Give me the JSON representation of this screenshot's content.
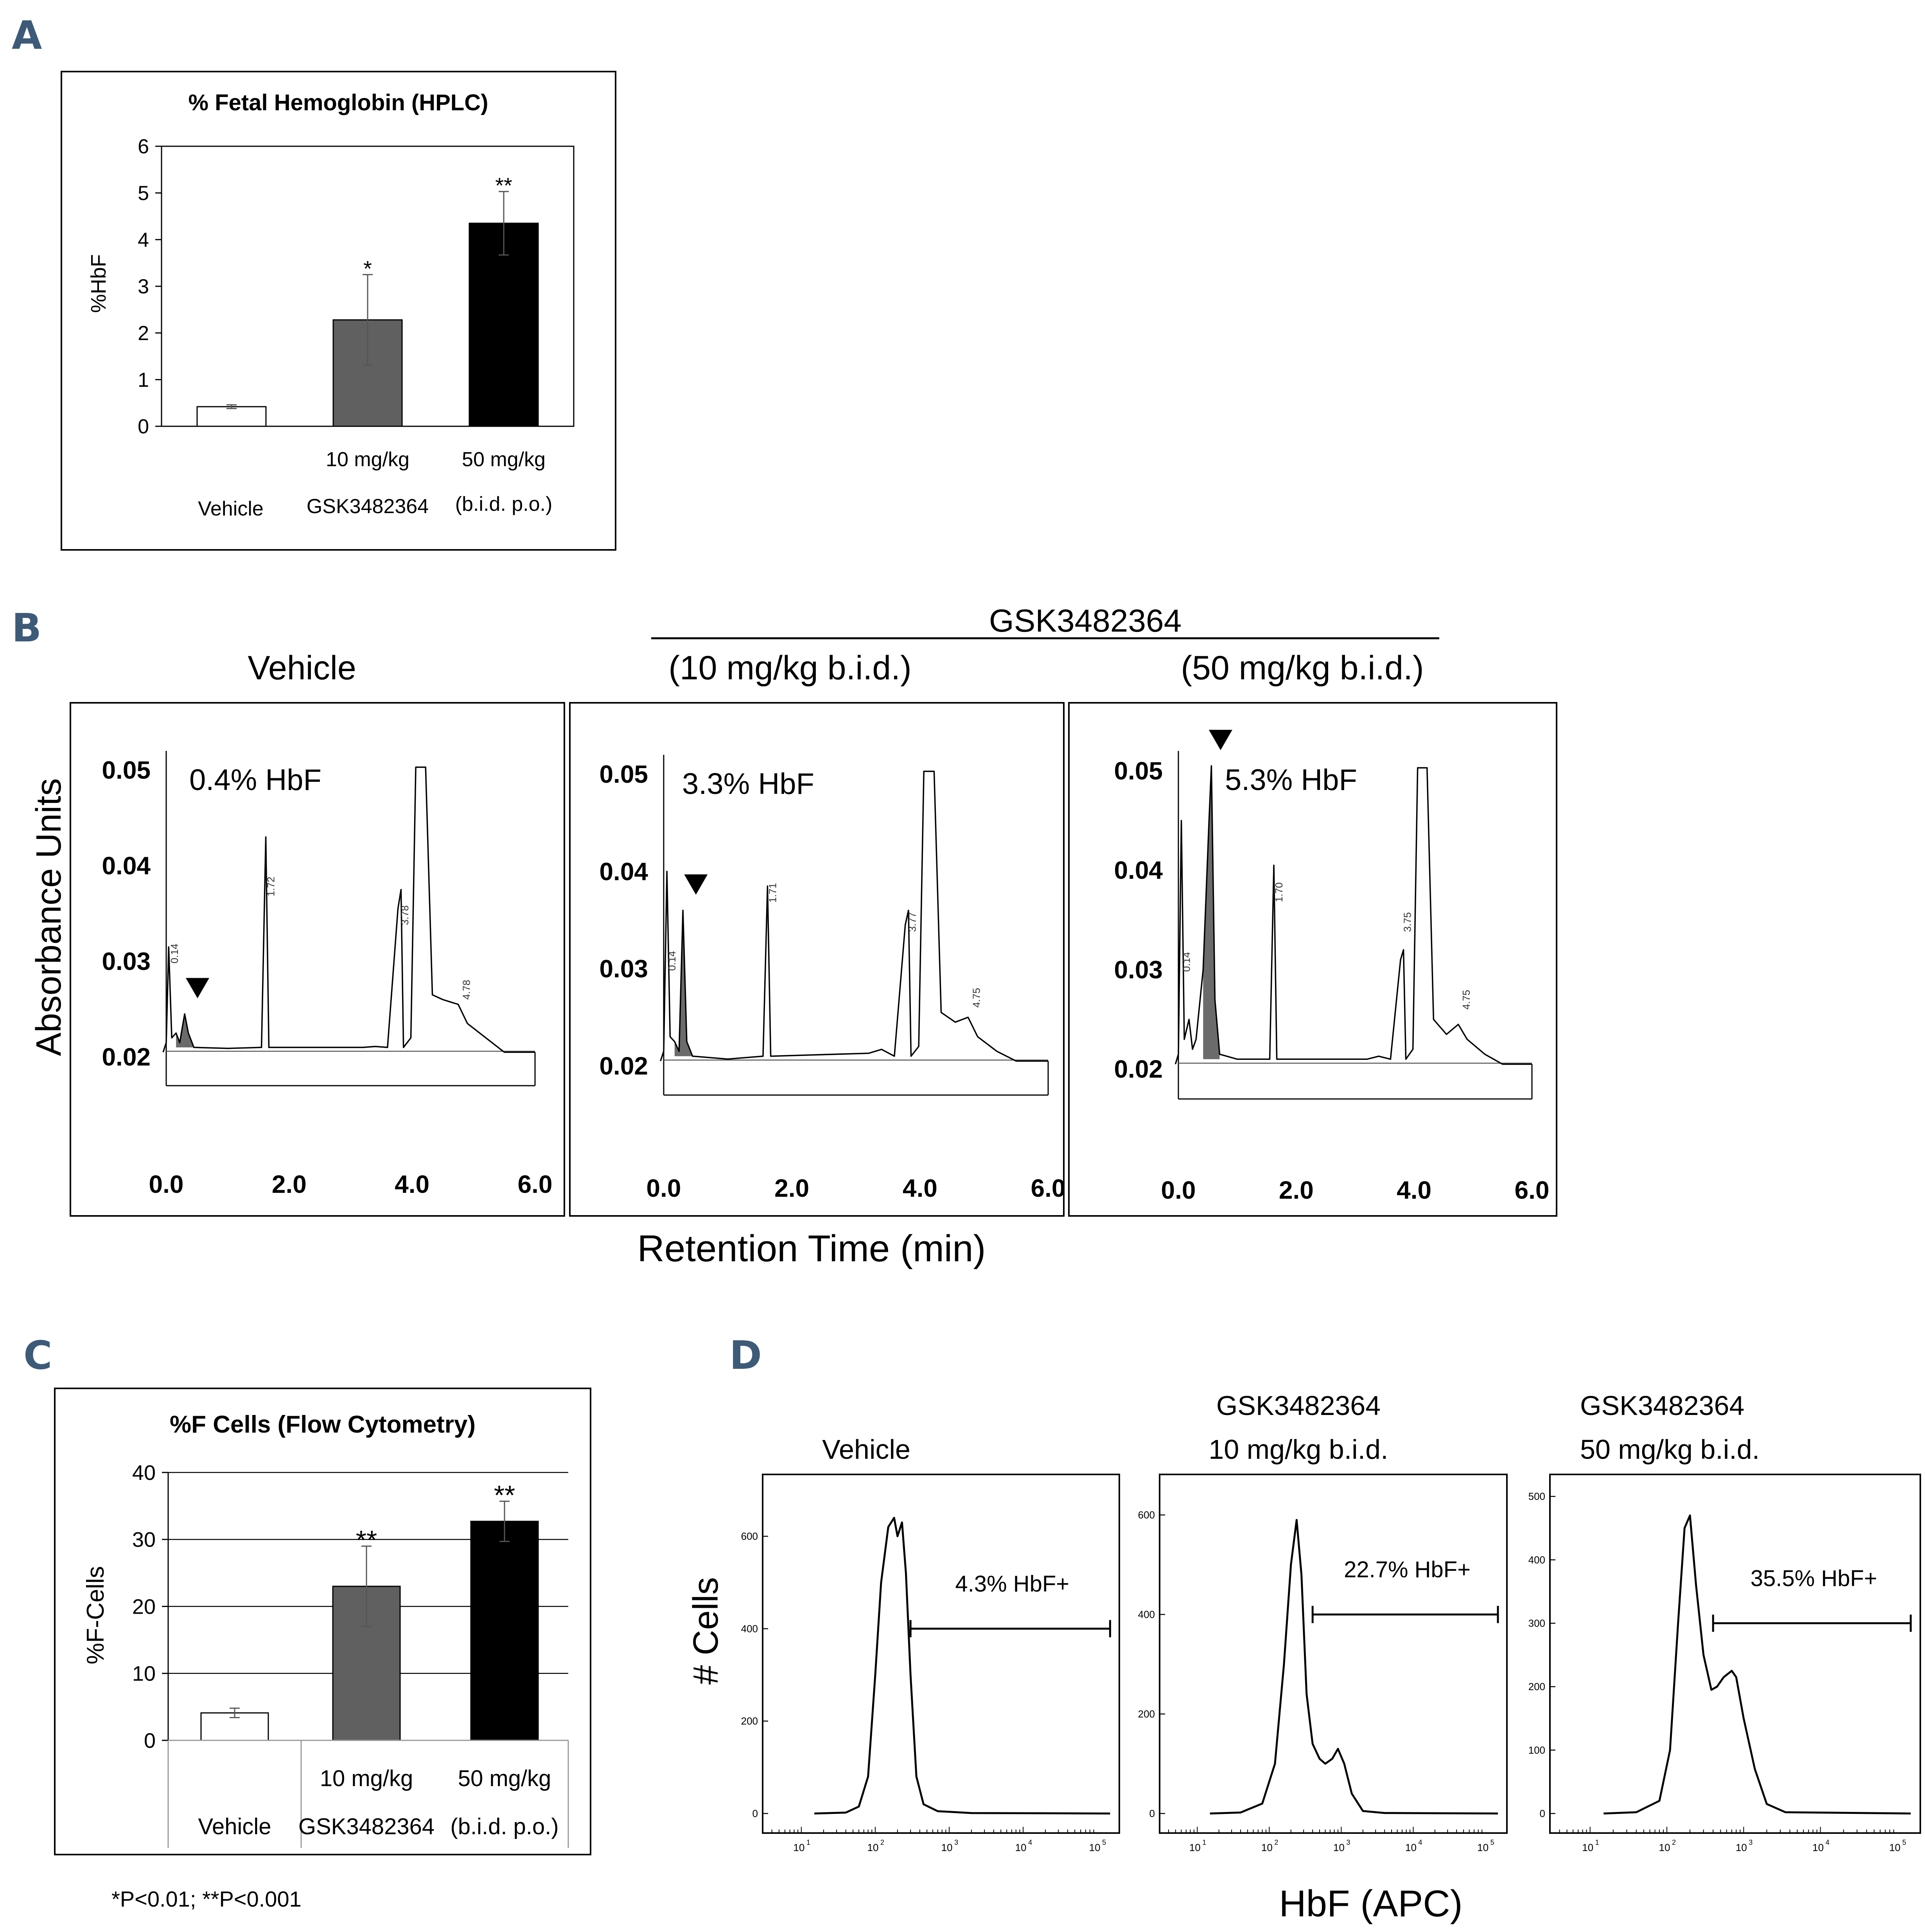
{
  "panel_labels": {
    "a": "A",
    "b": "B",
    "c": "C",
    "d": "D"
  },
  "footnote": {
    "text": "*P<0.01;  **P<0.001"
  },
  "chart_data": [
    {
      "panel": "A",
      "type": "bar",
      "title": "% Fetal Hemoglobin (HPLC)",
      "ylabel": "%HbF",
      "ylim": [
        0,
        6
      ],
      "yticks": [
        0,
        1,
        2,
        3,
        4,
        5,
        6
      ],
      "categories": [
        "Vehicle",
        "10 mg/kg",
        "50 mg/kg"
      ],
      "values": [
        0.42,
        2.28,
        4.35
      ],
      "errors": [
        0.04,
        0.97,
        0.68
      ],
      "colors": [
        "#ffffff",
        "#606060",
        "#000000"
      ],
      "significance": [
        "",
        "*",
        "**"
      ],
      "group_labels": {
        "vehicle": "Vehicle",
        "drug": "GSK3482364",
        "dosing": "(b.i.d. p.o.)"
      }
    },
    {
      "panel": "C",
      "type": "bar",
      "title": "%F Cells (Flow Cytometry)",
      "ylabel": "%F-Cells",
      "ylim": [
        0,
        40
      ],
      "yticks": [
        0,
        10,
        20,
        30,
        40
      ],
      "categories": [
        "Vehicle",
        "10 mg/kg",
        "50 mg/kg"
      ],
      "values": [
        4.1,
        23.0,
        32.7
      ],
      "errors": [
        0.7,
        6.0,
        3.0
      ],
      "colors": [
        "#ffffff",
        "#606060",
        "#000000"
      ],
      "significance": [
        "",
        "**",
        "**"
      ],
      "group_labels": {
        "vehicle": "Vehicle",
        "drug": "GSK3482364",
        "dosing": "(b.i.d. p.o.)"
      }
    },
    {
      "panel": "B",
      "type": "line",
      "drug_header": "GSK3482364",
      "xlabel": "Retention Time (min)",
      "ylabel": "Absorbance Units",
      "xlim": [
        0,
        6
      ],
      "xticks": [
        "0.0",
        "2.0",
        "4.0",
        "6.0"
      ],
      "ylim": [
        0.02,
        0.05
      ],
      "yticks": [
        "0.02",
        "0.03",
        "0.04",
        "0.05"
      ],
      "series": [
        {
          "condition": "Vehicle",
          "annotation": "0.4% HbF",
          "hbf_peak_time": 0.35,
          "points": [
            [
              -0.05,
              0.0205
            ],
            [
              0.0,
              0.0215
            ],
            [
              0.04,
              0.0315
            ],
            [
              0.09,
              0.022
            ],
            [
              0.16,
              0.0225
            ],
            [
              0.22,
              0.0215
            ],
            [
              0.3,
              0.0245
            ],
            [
              0.36,
              0.0225
            ],
            [
              0.45,
              0.021
            ],
            [
              1.0,
              0.0209
            ],
            [
              1.55,
              0.021
            ],
            [
              1.62,
              0.043
            ],
            [
              1.67,
              0.021
            ],
            [
              3.2,
              0.021
            ],
            [
              3.4,
              0.0211
            ],
            [
              3.6,
              0.021
            ],
            [
              3.77,
              0.0355
            ],
            [
              3.82,
              0.0375
            ],
            [
              3.86,
              0.021
            ],
            [
              3.98,
              0.022
            ],
            [
              4.06,
              0.0503
            ],
            [
              4.22,
              0.0503
            ],
            [
              4.33,
              0.0265
            ],
            [
              4.5,
              0.026
            ],
            [
              4.75,
              0.0255
            ],
            [
              4.9,
              0.0235
            ],
            [
              5.2,
              0.022
            ],
            [
              5.5,
              0.0205
            ],
            [
              6.0,
              0.0205
            ]
          ],
          "peak_labels": [
            "0.14",
            "1.72",
            "3.78",
            "4.78"
          ]
        },
        {
          "condition": "(10 mg/kg b.i.d.)",
          "annotation": "3.3% HbF",
          "hbf_peak_time": 0.35,
          "points": [
            [
              -0.05,
              0.0205
            ],
            [
              0.0,
              0.0215
            ],
            [
              0.05,
              0.04
            ],
            [
              0.1,
              0.023
            ],
            [
              0.17,
              0.0225
            ],
            [
              0.24,
              0.0215
            ],
            [
              0.3,
              0.036
            ],
            [
              0.36,
              0.0225
            ],
            [
              0.45,
              0.021
            ],
            [
              1.0,
              0.0207
            ],
            [
              1.55,
              0.021
            ],
            [
              1.62,
              0.0385
            ],
            [
              1.67,
              0.021
            ],
            [
              3.2,
              0.0213
            ],
            [
              3.4,
              0.0217
            ],
            [
              3.6,
              0.021
            ],
            [
              3.77,
              0.0345
            ],
            [
              3.82,
              0.036
            ],
            [
              3.86,
              0.021
            ],
            [
              3.98,
              0.022
            ],
            [
              4.06,
              0.0503
            ],
            [
              4.22,
              0.0503
            ],
            [
              4.33,
              0.0255
            ],
            [
              4.55,
              0.0245
            ],
            [
              4.75,
              0.025
            ],
            [
              4.9,
              0.023
            ],
            [
              5.2,
              0.0215
            ],
            [
              5.5,
              0.0205
            ],
            [
              6.0,
              0.0205
            ]
          ],
          "peak_labels": [
            "0.14",
            "1.71",
            "3.77",
            "4.75"
          ]
        },
        {
          "condition": "(50 mg/kg b.i.d.)",
          "annotation": "5.3% HbF",
          "hbf_peak_time": 0.55,
          "points": [
            [
              -0.05,
              0.0205
            ],
            [
              0.0,
              0.0215
            ],
            [
              0.05,
              0.045
            ],
            [
              0.1,
              0.023
            ],
            [
              0.18,
              0.025
            ],
            [
              0.24,
              0.022
            ],
            [
              0.3,
              0.023
            ],
            [
              0.42,
              0.03
            ],
            [
              0.52,
              0.045
            ],
            [
              0.56,
              0.0505
            ],
            [
              0.62,
              0.027
            ],
            [
              0.7,
              0.0215
            ],
            [
              1.0,
              0.021
            ],
            [
              1.55,
              0.021
            ],
            [
              1.62,
              0.0405
            ],
            [
              1.67,
              0.021
            ],
            [
              3.2,
              0.021
            ],
            [
              3.4,
              0.0213
            ],
            [
              3.6,
              0.021
            ],
            [
              3.77,
              0.031
            ],
            [
              3.82,
              0.032
            ],
            [
              3.86,
              0.021
            ],
            [
              3.98,
              0.022
            ],
            [
              4.06,
              0.0503
            ],
            [
              4.22,
              0.0503
            ],
            [
              4.33,
              0.025
            ],
            [
              4.55,
              0.0235
            ],
            [
              4.75,
              0.0245
            ],
            [
              4.9,
              0.023
            ],
            [
              5.2,
              0.0215
            ],
            [
              5.5,
              0.0205
            ],
            [
              6.0,
              0.0205
            ]
          ],
          "peak_labels": [
            "0.14",
            "1.70",
            "3.75",
            "4.75"
          ]
        }
      ]
    },
    {
      "panel": "D",
      "type": "line",
      "xlabel": "HbF (APC)",
      "ylabel": "# Cells",
      "xscale": "log",
      "xlim": [
        3,
        200000
      ],
      "xticks": [
        10,
        100,
        1000,
        10000,
        100000
      ],
      "xtick_labels": [
        [
          "10",
          "1"
        ],
        [
          "10",
          "2"
        ],
        [
          "10",
          "3"
        ],
        [
          "10",
          "4"
        ],
        [
          "10",
          "5"
        ]
      ],
      "series": [
        {
          "condition": [
            "Vehicle"
          ],
          "gate_label": "4.3% HbF+",
          "gate": [
            300,
            150000
          ],
          "gate_level": 400,
          "ylim": [
            0,
            700
          ],
          "yticks": [
            0,
            200,
            400,
            600
          ],
          "points": [
            [
              15,
              0
            ],
            [
              40,
              2
            ],
            [
              60,
              15
            ],
            [
              80,
              80
            ],
            [
              100,
              300
            ],
            [
              120,
              500
            ],
            [
              150,
              620
            ],
            [
              180,
              640
            ],
            [
              200,
              600
            ],
            [
              230,
              630
            ],
            [
              260,
              520
            ],
            [
              300,
              300
            ],
            [
              360,
              80
            ],
            [
              450,
              20
            ],
            [
              700,
              5
            ],
            [
              2000,
              1
            ],
            [
              150000,
              0
            ]
          ]
        },
        {
          "condition": [
            "GSK3482364",
            "10 mg/kg b.i.d."
          ],
          "gate_label": "22.7% HbF+",
          "gate": [
            400,
            150000
          ],
          "gate_level": 400,
          "ylim": [
            0,
            650
          ],
          "yticks": [
            0,
            200,
            400,
            600
          ],
          "points": [
            [
              15,
              0
            ],
            [
              40,
              2
            ],
            [
              80,
              20
            ],
            [
              120,
              100
            ],
            [
              160,
              300
            ],
            [
              200,
              500
            ],
            [
              240,
              590
            ],
            [
              280,
              480
            ],
            [
              330,
              240
            ],
            [
              400,
              140
            ],
            [
              500,
              110
            ],
            [
              600,
              100
            ],
            [
              750,
              110
            ],
            [
              900,
              130
            ],
            [
              1100,
              100
            ],
            [
              1400,
              40
            ],
            [
              2000,
              5
            ],
            [
              4000,
              1
            ],
            [
              150000,
              0
            ]
          ]
        },
        {
          "condition": [
            "GSK3482364",
            "50 mg/kg b.i.d."
          ],
          "gate_label": "35.5% HbF+",
          "gate": [
            400,
            150000
          ],
          "gate_level": 300,
          "ylim": [
            0,
            510
          ],
          "yticks": [
            0,
            100,
            200,
            300,
            400,
            500
          ],
          "points": [
            [
              15,
              0
            ],
            [
              40,
              2
            ],
            [
              80,
              20
            ],
            [
              110,
              100
            ],
            [
              140,
              300
            ],
            [
              170,
              450
            ],
            [
              200,
              470
            ],
            [
              240,
              360
            ],
            [
              300,
              250
            ],
            [
              380,
              195
            ],
            [
              450,
              200
            ],
            [
              550,
              215
            ],
            [
              700,
              225
            ],
            [
              800,
              215
            ],
            [
              1000,
              150
            ],
            [
              1400,
              70
            ],
            [
              2000,
              15
            ],
            [
              3500,
              2
            ],
            [
              150000,
              0
            ]
          ]
        }
      ]
    }
  ]
}
